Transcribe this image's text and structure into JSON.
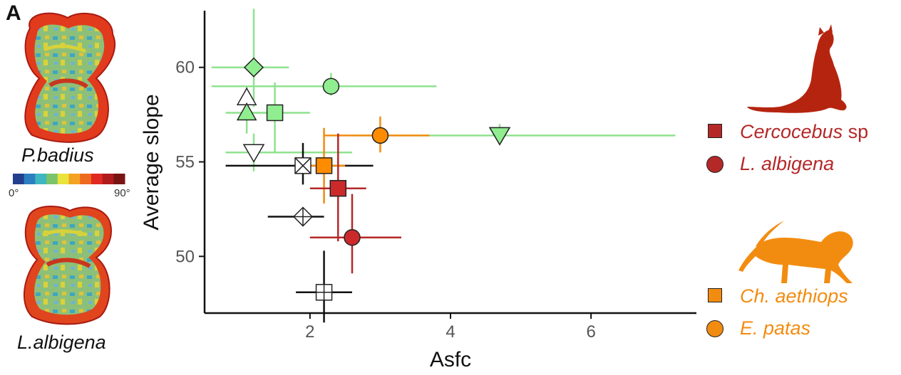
{
  "panel_label": "A",
  "teeth": [
    {
      "label": "P.badius"
    },
    {
      "label": "L.albigena"
    }
  ],
  "slope_scale": {
    "min_label": "0°",
    "max_label": "90°",
    "colors": [
      "#23408f",
      "#2c7fc0",
      "#3fb7c2",
      "#7cc46a",
      "#e9e33b",
      "#f4a223",
      "#ee6a1f",
      "#e02a1f",
      "#b01c1c",
      "#7a1414"
    ]
  },
  "chart_data": {
    "type": "scatter",
    "title": "",
    "xlabel": "Asfc",
    "ylabel": "Average slope",
    "xlim": [
      0.5,
      7.5
    ],
    "ylim": [
      47,
      63
    ],
    "x_ticks": [
      2,
      4,
      6
    ],
    "y_ticks": [
      50,
      55,
      60
    ],
    "grid": false,
    "series": [
      {
        "group": "green",
        "color": "#8fe28f",
        "fill": "#90ee90",
        "points": [
          {
            "shape": "diamond",
            "x": 1.2,
            "y": 60.0,
            "x_err": [
              0.6,
              1.7
            ],
            "y_err": [
              57.9,
              63.1
            ]
          },
          {
            "shape": "circle",
            "x": 2.3,
            "y": 59.0,
            "x_err": [
              0.6,
              3.8
            ],
            "y_err": [
              58.5,
              59.7
            ]
          },
          {
            "shape": "triangle-up-open",
            "x": 1.1,
            "y": 58.4,
            "x_err": null,
            "y_err": null
          },
          {
            "shape": "triangle-up",
            "x": 1.1,
            "y": 57.6,
            "x_err": [
              0.8,
              1.6
            ],
            "y_err": [
              56.5,
              59.0
            ]
          },
          {
            "shape": "square",
            "x": 1.5,
            "y": 57.6,
            "x_err": [
              1.1,
              2.0
            ],
            "y_err": [
              55.5,
              59.2
            ]
          },
          {
            "shape": "triangle-down",
            "x": 4.7,
            "y": 56.4,
            "x_err": [
              2.6,
              7.2
            ],
            "y_err": [
              56.0,
              57.0
            ]
          },
          {
            "shape": "triangle-down-open",
            "x": 1.2,
            "y": 55.5,
            "x_err": [
              0.8,
              2.6
            ],
            "y_err": [
              54.5,
              56.5
            ]
          }
        ]
      },
      {
        "group": "black",
        "color": "#111111",
        "fill": "#ffffff",
        "points": [
          {
            "shape": "square-x",
            "x": 1.9,
            "y": 54.8,
            "x_err": [
              0.8,
              2.9
            ],
            "y_err": [
              53.8,
              56.0
            ]
          },
          {
            "shape": "diamond-plus",
            "x": 1.9,
            "y": 52.1,
            "x_err": [
              1.4,
              2.2
            ],
            "y_err": null
          },
          {
            "shape": "square-plus",
            "x": 2.2,
            "y": 48.1,
            "x_err": [
              1.8,
              2.6
            ],
            "y_err": [
              46.5,
              50.3
            ]
          }
        ]
      },
      {
        "group": "orange",
        "color": "#f28c10",
        "fill": "#ff8c00",
        "points": [
          {
            "shape": "square",
            "x": 2.2,
            "y": 54.8,
            "x_err": [
              2.0,
              2.5
            ],
            "y_err": [
              52.8,
              56.8
            ]
          },
          {
            "shape": "circle",
            "x": 3.0,
            "y": 56.4,
            "x_err": [
              2.2,
              3.7
            ],
            "y_err": [
              55.5,
              57.4
            ]
          }
        ]
      },
      {
        "group": "red",
        "color": "#b52828",
        "fill": "#cc2a2a",
        "points": [
          {
            "shape": "square",
            "x": 2.4,
            "y": 53.6,
            "x_err": [
              2.0,
              2.8
            ],
            "y_err": [
              50.8,
              56.5
            ]
          },
          {
            "shape": "circle",
            "x": 2.6,
            "y": 51.0,
            "x_err": [
              2.0,
              3.3
            ],
            "y_err": [
              49.1,
              53.3
            ]
          }
        ]
      }
    ]
  },
  "legend": {
    "red_group": {
      "color": "#b52828",
      "items": [
        {
          "shape": "square",
          "label": "Cercocebus",
          "suffix": " sp"
        },
        {
          "shape": "circle",
          "label": "L. albigena",
          "suffix": ""
        }
      ]
    },
    "orange_group": {
      "color": "#f28c10",
      "items": [
        {
          "shape": "square",
          "label": "Ch. aethiops",
          "suffix": ""
        },
        {
          "shape": "circle",
          "label": "E. patas",
          "suffix": ""
        }
      ]
    }
  }
}
